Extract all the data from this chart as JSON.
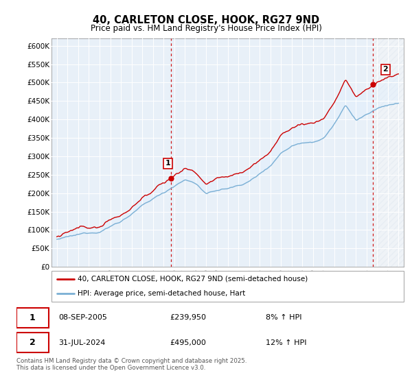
{
  "title": "40, CARLETON CLOSE, HOOK, RG27 9ND",
  "subtitle": "Price paid vs. HM Land Registry's House Price Index (HPI)",
  "ylabel_ticks": [
    "£0",
    "£50K",
    "£100K",
    "£150K",
    "£200K",
    "£250K",
    "£300K",
    "£350K",
    "£400K",
    "£450K",
    "£500K",
    "£550K",
    "£600K"
  ],
  "ylim": [
    0,
    620000
  ],
  "xlim_start": 1994.5,
  "xlim_end": 2027.5,
  "legend_line1": "40, CARLETON CLOSE, HOOK, RG27 9ND (semi-detached house)",
  "legend_line2": "HPI: Average price, semi-detached house, Hart",
  "purchase1_label": "1",
  "purchase1_date": "08-SEP-2005",
  "purchase1_price": "£239,950",
  "purchase1_hpi": "8% ↑ HPI",
  "purchase2_label": "2",
  "purchase2_date": "31-JUL-2024",
  "purchase2_price": "£495,000",
  "purchase2_hpi": "12% ↑ HPI",
  "footnote": "Contains HM Land Registry data © Crown copyright and database right 2025.\nThis data is licensed under the Open Government Licence v3.0.",
  "red_color": "#cc0000",
  "blue_color": "#7aafd4",
  "fill_color": "#ddeeff",
  "vline1_x": 2005.69,
  "vline2_x": 2024.58,
  "marker1_price": 239950,
  "marker2_price": 495000,
  "background_color": "#ffffff",
  "grid_color": "#ccddee",
  "plot_bg": "#e8f0f8"
}
